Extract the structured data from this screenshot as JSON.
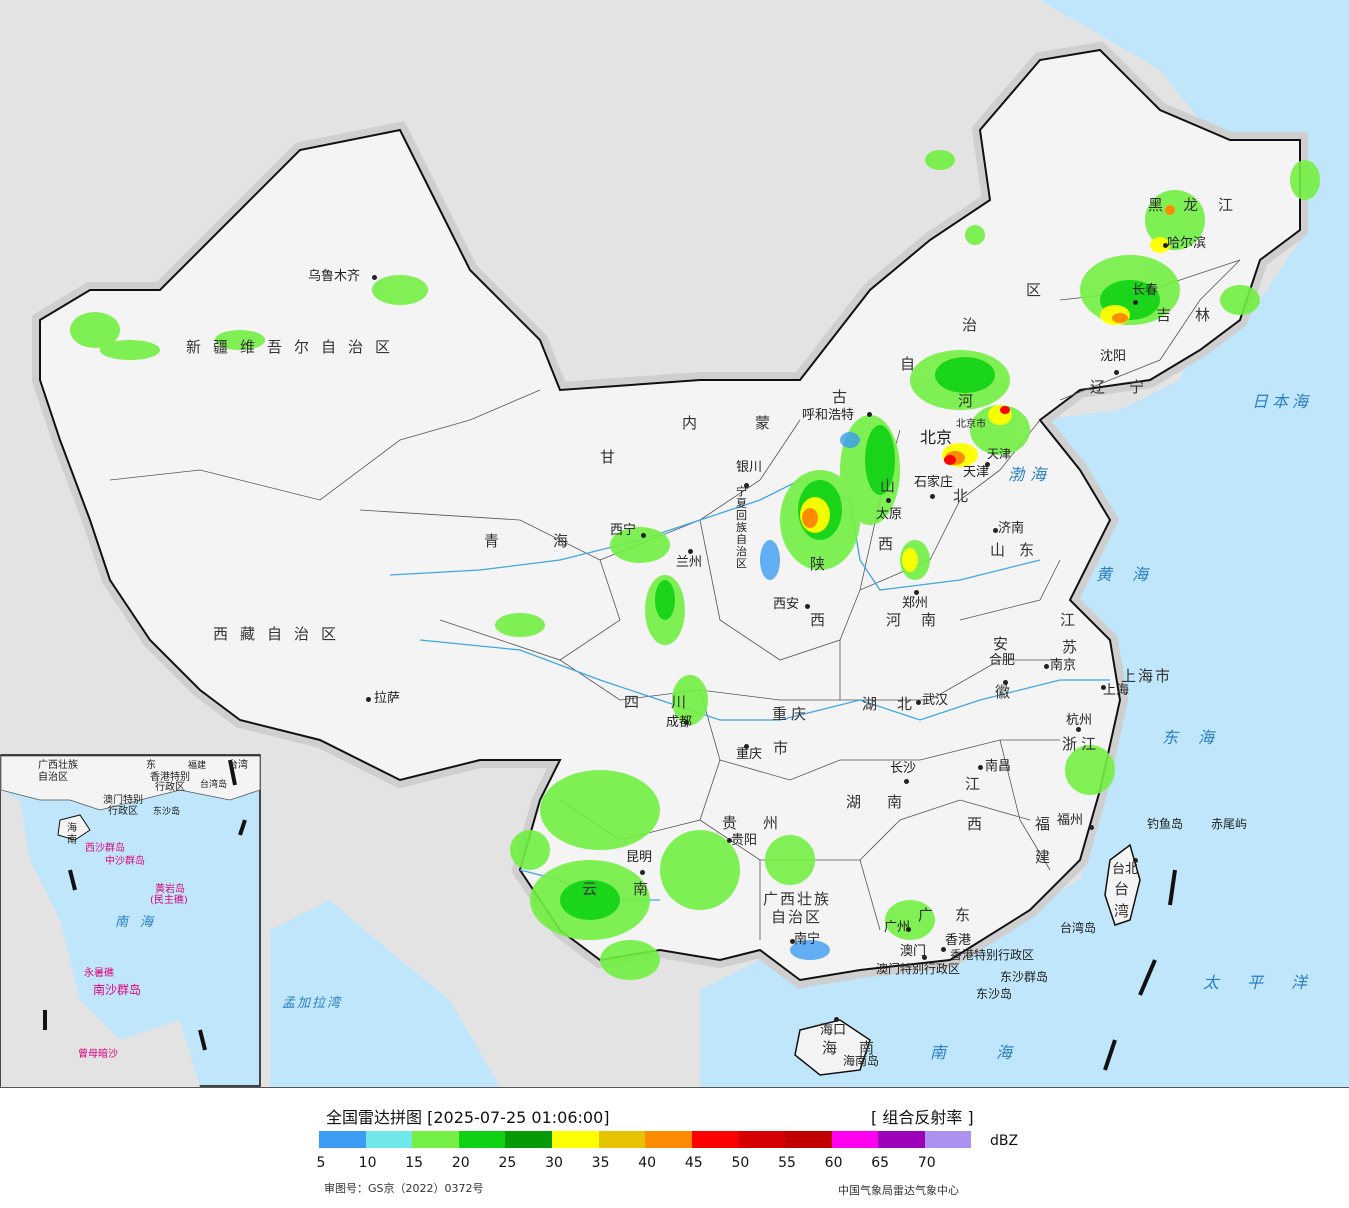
{
  "map": {
    "regions": [
      {
        "id": "xinjiang",
        "label": "新疆维吾尔自治区"
      },
      {
        "id": "xizang",
        "label": "西藏自治区"
      },
      {
        "id": "qinghai",
        "label": "青海"
      },
      {
        "id": "gansu",
        "label": "甘"
      },
      {
        "id": "neimenggu",
        "label": "内蒙"
      },
      {
        "id": "nmg_gu",
        "label": "古"
      },
      {
        "id": "nmg_zi",
        "label": "自"
      },
      {
        "id": "nmg_zhi",
        "label": "治"
      },
      {
        "id": "nmg_qu",
        "label": "区"
      },
      {
        "id": "heilongjiang",
        "label": "黑龙江"
      },
      {
        "id": "jilin",
        "label": "吉林"
      },
      {
        "id": "liaoning",
        "label": "辽宁"
      },
      {
        "id": "hebei_he",
        "label": "河"
      },
      {
        "id": "hebei_bei",
        "label": "北"
      },
      {
        "id": "shanxi_shan",
        "label": "山"
      },
      {
        "id": "shanxi_xi",
        "label": "西"
      },
      {
        "id": "shandong",
        "label": "山东"
      },
      {
        "id": "shaanxi_shan",
        "label": "陕"
      },
      {
        "id": "shaanxi_xi",
        "label": "西"
      },
      {
        "id": "henan",
        "label": "河南"
      },
      {
        "id": "jiangsu_jiang",
        "label": "江"
      },
      {
        "id": "jiangsu_su",
        "label": "苏"
      },
      {
        "id": "anhui_an",
        "label": "安"
      },
      {
        "id": "anhui_hui",
        "label": "徽"
      },
      {
        "id": "hubei",
        "label": "湖北"
      },
      {
        "id": "sichuan",
        "label": "四川"
      },
      {
        "id": "chongqing_1",
        "label": "重庆"
      },
      {
        "id": "chongqing_2",
        "label": "市"
      },
      {
        "id": "zhejiang",
        "label": "浙江"
      },
      {
        "id": "hunan",
        "label": "湖南"
      },
      {
        "id": "jiangxi_jiang",
        "label": "江"
      },
      {
        "id": "jiangxi_xi",
        "label": "西"
      },
      {
        "id": "fujian_fu",
        "label": "福"
      },
      {
        "id": "fujian_jian",
        "label": "建"
      },
      {
        "id": "guizhou",
        "label": "贵州"
      },
      {
        "id": "yunnan",
        "label": "云南"
      },
      {
        "id": "guangxi_1",
        "label": "广西壮族"
      },
      {
        "id": "guangxi_2",
        "label": "自治区"
      },
      {
        "id": "guangdong",
        "label": "广东"
      },
      {
        "id": "hainan",
        "label": "海南"
      },
      {
        "id": "taiwan_tai",
        "label": "台"
      },
      {
        "id": "taiwan_wan",
        "label": "湾"
      },
      {
        "id": "shanghai",
        "label": "上海市"
      },
      {
        "id": "tianjin",
        "label": "天津"
      },
      {
        "id": "ningxia",
        "label": "宁夏回族自治区"
      },
      {
        "id": "hk_region",
        "label": "香港特别行政区"
      },
      {
        "id": "macao_region",
        "label": "澳门特别行政区"
      }
    ],
    "cities": [
      {
        "id": "urumqi",
        "label": "乌鲁木齐"
      },
      {
        "id": "lhasa",
        "label": "拉萨"
      },
      {
        "id": "xining",
        "label": "西宁"
      },
      {
        "id": "lanzhou",
        "label": "兰州"
      },
      {
        "id": "yinchuan",
        "label": "银川"
      },
      {
        "id": "hohhot",
        "label": "呼和浩特"
      },
      {
        "id": "beijing",
        "label": "北京"
      },
      {
        "id": "beijing_city",
        "label": "北京市"
      },
      {
        "id": "tianjin_city",
        "label": "天津"
      },
      {
        "id": "shijiazhuang",
        "label": "石家庄"
      },
      {
        "id": "taiyuan",
        "label": "太原"
      },
      {
        "id": "jinan",
        "label": "济南"
      },
      {
        "id": "zhengzhou",
        "label": "郑州"
      },
      {
        "id": "xian",
        "label": "西安"
      },
      {
        "id": "hefei",
        "label": "合肥"
      },
      {
        "id": "nanjing",
        "label": "南京"
      },
      {
        "id": "shanghai_city",
        "label": "上海"
      },
      {
        "id": "hangzhou",
        "label": "杭州"
      },
      {
        "id": "wuhan",
        "label": "武汉"
      },
      {
        "id": "chengdu",
        "label": "成都"
      },
      {
        "id": "chongqing_city",
        "label": "重庆"
      },
      {
        "id": "changsha",
        "label": "长沙"
      },
      {
        "id": "nanchang",
        "label": "南昌"
      },
      {
        "id": "fuzhou",
        "label": "福州"
      },
      {
        "id": "guiyang",
        "label": "贵阳"
      },
      {
        "id": "kunming",
        "label": "昆明"
      },
      {
        "id": "nanning",
        "label": "南宁"
      },
      {
        "id": "guangzhou",
        "label": "广州"
      },
      {
        "id": "hongkong",
        "label": "香港"
      },
      {
        "id": "macau",
        "label": "澳门"
      },
      {
        "id": "haikou",
        "label": "海口"
      },
      {
        "id": "taipei",
        "label": "台北"
      },
      {
        "id": "shenyang",
        "label": "沈阳"
      },
      {
        "id": "changchun",
        "label": "长春"
      },
      {
        "id": "harbin",
        "label": "哈尔滨"
      }
    ],
    "islands": [
      {
        "id": "diaoyu",
        "label": "钓鱼岛"
      },
      {
        "id": "chiwei",
        "label": "赤尾屿"
      },
      {
        "id": "taiwan_island",
        "label": "台湾岛"
      },
      {
        "id": "hainan_island",
        "label": "海南岛"
      },
      {
        "id": "dongsha_islands",
        "label": "东沙群岛"
      },
      {
        "id": "dongsha_island",
        "label": "东沙岛"
      }
    ],
    "seas": [
      {
        "id": "japan_sea",
        "label": "日本海"
      },
      {
        "id": "bohai",
        "label": "渤海"
      },
      {
        "id": "yellow_sea",
        "label": "黄海"
      },
      {
        "id": "east_sea",
        "label": "东海"
      },
      {
        "id": "pacific",
        "label": "太平洋"
      },
      {
        "id": "south_sea",
        "label": "南海"
      },
      {
        "id": "bengal",
        "label": "孟加拉湾"
      }
    ],
    "inset": [
      {
        "id": "i_guangxi",
        "label": "广西壮族"
      },
      {
        "id": "i_zizhiqu",
        "label": "自治区"
      },
      {
        "id": "i_dong",
        "label": "东"
      },
      {
        "id": "i_fujian",
        "label": "福建"
      },
      {
        "id": "i_taiwan",
        "label": "台湾"
      },
      {
        "id": "i_hk",
        "label": "香港特别"
      },
      {
        "id": "i_hk2",
        "label": "行政区"
      },
      {
        "id": "i_macau",
        "label": "澳门特别"
      },
      {
        "id": "i_macau2",
        "label": "行政区"
      },
      {
        "id": "i_dongsha",
        "label": "东沙岛"
      },
      {
        "id": "i_taiwan_dao",
        "label": "台湾岛"
      },
      {
        "id": "i_hai",
        "label": "海"
      },
      {
        "id": "i_nan",
        "label": "南"
      },
      {
        "id": "i_xisha",
        "label": "西沙群岛"
      },
      {
        "id": "i_zhongsha",
        "label": "中沙群岛"
      },
      {
        "id": "i_huangyan",
        "label": "黄岩岛"
      },
      {
        "id": "i_huangyan2",
        "label": "(民主礁)"
      },
      {
        "id": "i_nanhai_nan",
        "label": "南"
      },
      {
        "id": "i_nanhai_hai",
        "label": "海"
      },
      {
        "id": "i_yongshu",
        "label": "永暑礁"
      },
      {
        "id": "i_nansha",
        "label": "南沙群岛"
      },
      {
        "id": "i_zengmu",
        "label": "曾母暗沙"
      }
    ]
  },
  "legend": {
    "title": "全国雷达拼图 [2025-07-25 01:06:00]",
    "type": "[ 组合反射率 ]",
    "unit": "dBZ",
    "colors": [
      "#3c9cf2",
      "#6ee8e8",
      "#73f043",
      "#10d214",
      "#079a07",
      "#ffff00",
      "#e6c300",
      "#ff8c00",
      "#ff0000",
      "#d60000",
      "#c00000",
      "#ff00f0",
      "#9c00b8",
      "#ac91f0"
    ],
    "ticks": [
      "5",
      "10",
      "15",
      "20",
      "25",
      "30",
      "35",
      "40",
      "45",
      "50",
      "55",
      "60",
      "65",
      "70"
    ],
    "approval": "审图号：GS京（2022）0372号",
    "agency": "中国气象局雷达气象中心"
  }
}
